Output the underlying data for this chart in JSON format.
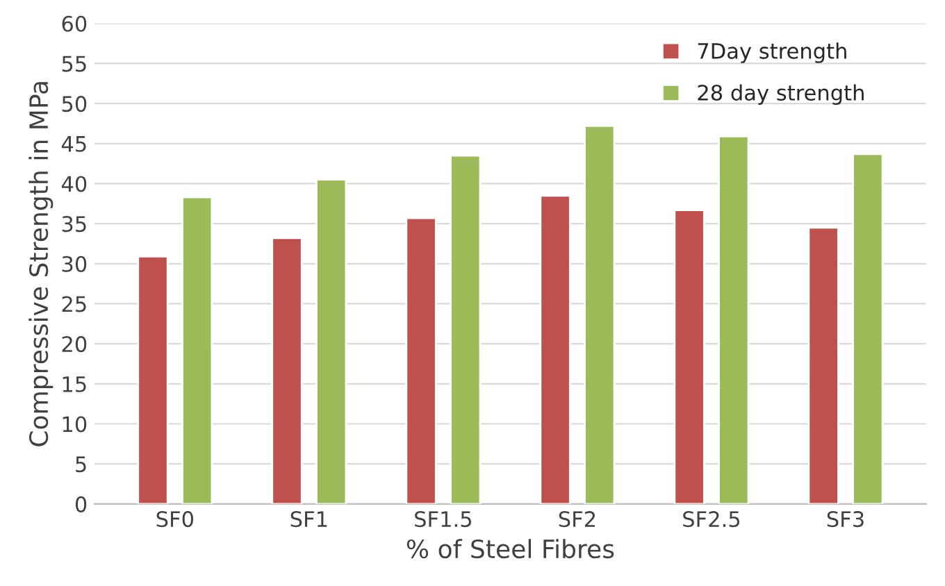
{
  "chart_data": {
    "type": "bar",
    "xlabel": "% of Steel Fibres",
    "ylabel": "Compressive Strength in MPa",
    "categories": [
      "SF0",
      "SF1",
      "SF1.5",
      "SF2",
      "SF2.5",
      "SF3"
    ],
    "series": [
      {
        "name": "7Day strength",
        "color": "#c0504d",
        "values": [
          30.9,
          33.2,
          35.7,
          38.5,
          36.7,
          34.5
        ]
      },
      {
        "name": "28 day strength",
        "color": "#9bbb59",
        "values": [
          38.3,
          40.5,
          43.5,
          47.2,
          45.9,
          43.7
        ]
      }
    ],
    "ylim": [
      0,
      60
    ],
    "yticks": [
      0,
      5,
      10,
      15,
      20,
      25,
      30,
      35,
      40,
      45,
      50,
      55,
      60
    ],
    "grid": "y",
    "legend": "top right"
  }
}
